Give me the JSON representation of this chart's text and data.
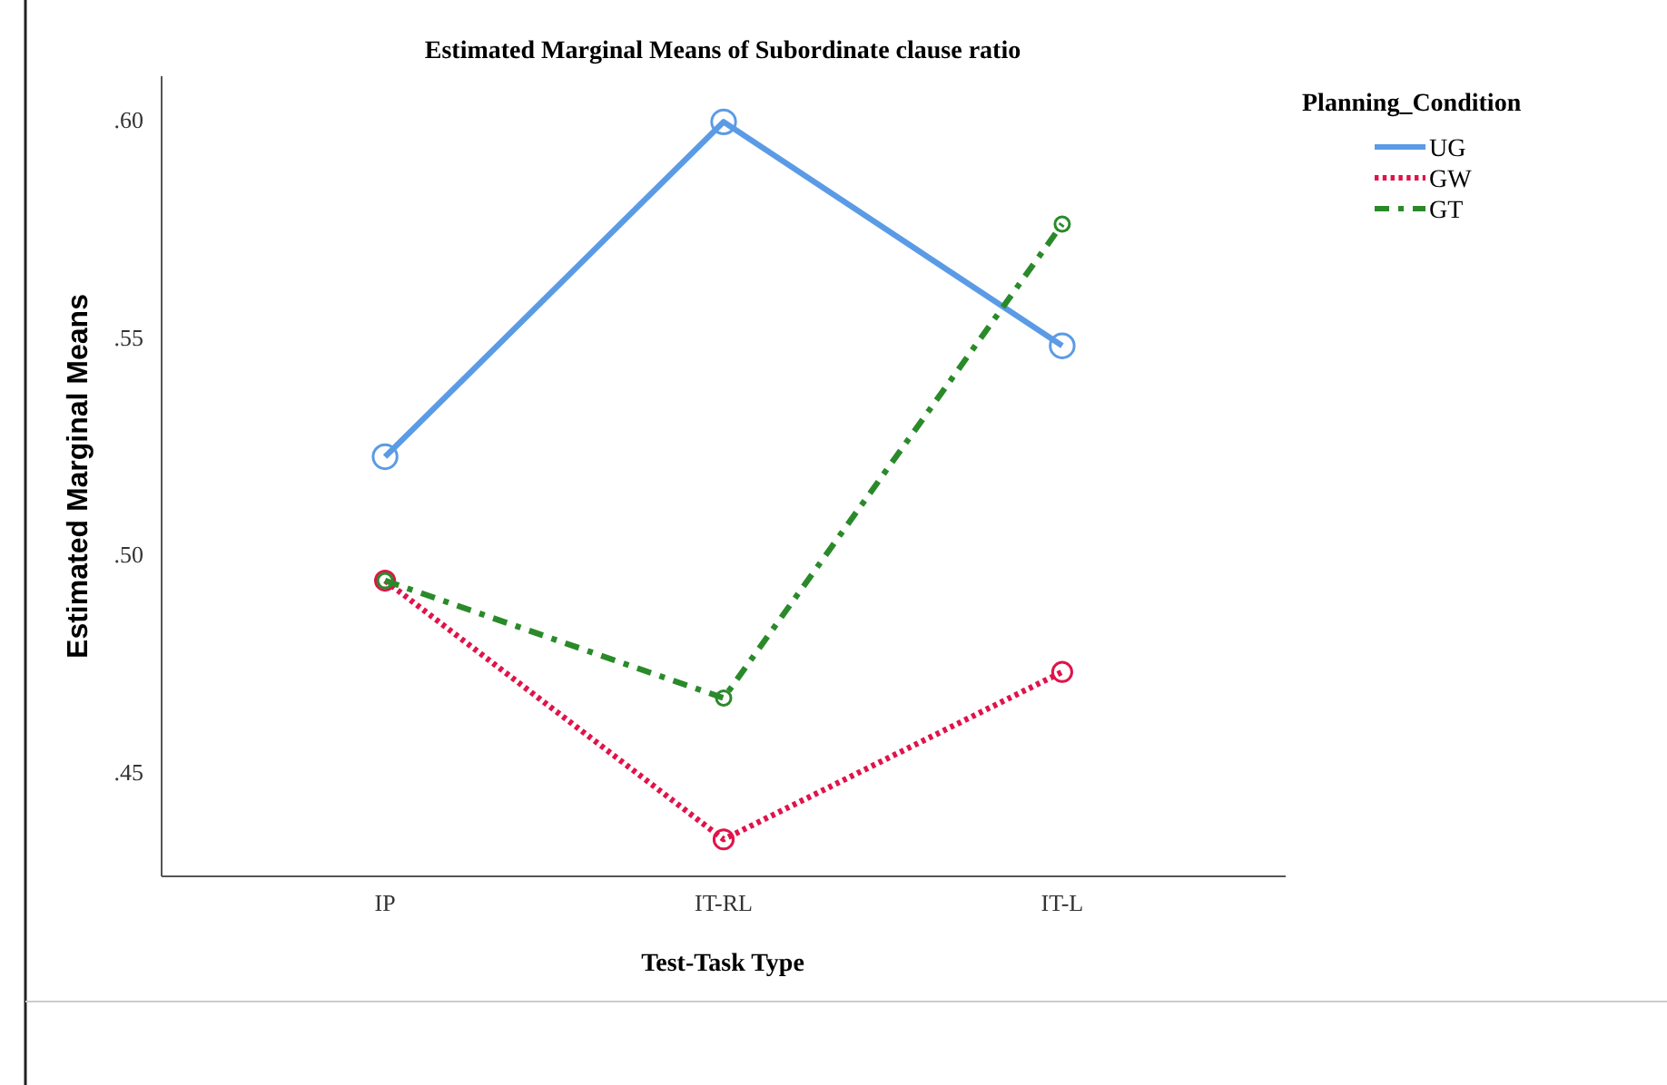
{
  "chart_data": {
    "type": "line",
    "title": "Estimated Marginal Means of Subordinate clause ratio",
    "xlabel": "Test-Task Type",
    "ylabel": "Estimated Marginal Means",
    "legend_title": "Planning_Condition",
    "categories": [
      "IP",
      "IT-RL",
      "IT-L"
    ],
    "series": [
      {
        "name": "UG",
        "color": "#5b9be6",
        "line_style": "solid",
        "values": [
          0.5225,
          0.5995,
          0.548
        ]
      },
      {
        "name": "GW",
        "color": "#e0134a",
        "line_style": "dotted",
        "values": [
          0.494,
          0.4345,
          0.473
        ]
      },
      {
        "name": "GT",
        "color": "#2a8a2a",
        "line_style": "dashed",
        "values": [
          0.494,
          0.467,
          0.576
        ]
      }
    ],
    "ylim": [
      0.426,
      0.61
    ],
    "yticks": [
      {
        "value": 0.45,
        "label": ".45"
      },
      {
        "value": 0.5,
        "label": ".50"
      },
      {
        "value": 0.55,
        "label": ".55"
      },
      {
        "value": 0.6,
        "label": ".60"
      }
    ],
    "marker": "circle",
    "grid": false,
    "legend": "top right"
  }
}
